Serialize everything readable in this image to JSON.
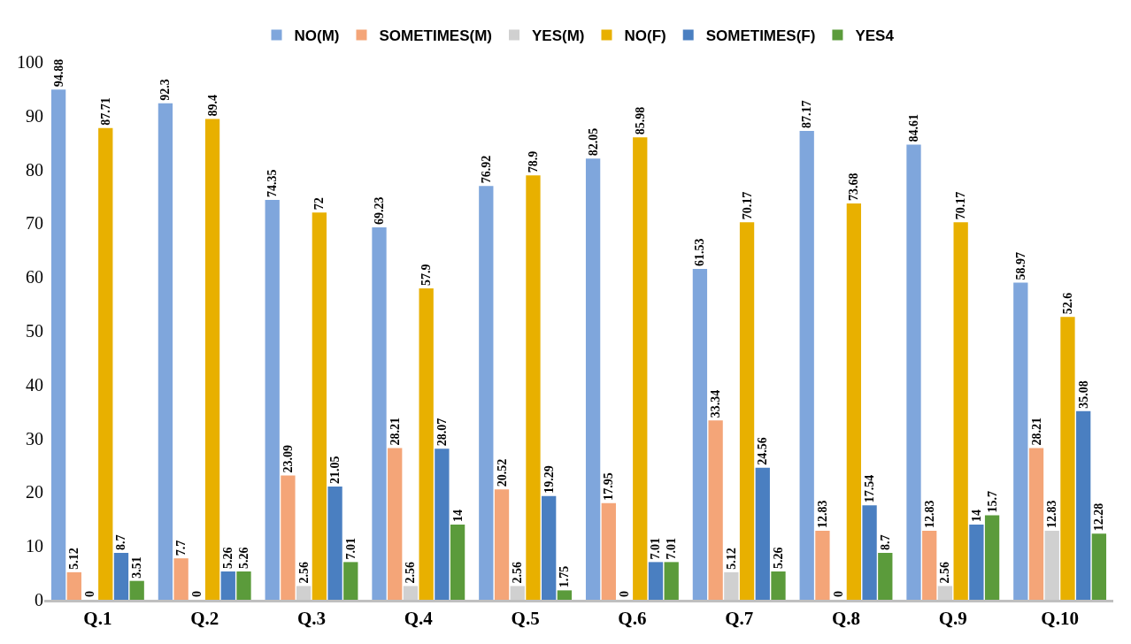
{
  "chart_data": {
    "type": "bar",
    "categories": [
      "Q.1",
      "Q.2",
      "Q.3",
      "Q.4",
      "Q.5",
      "Q.6",
      "Q.7",
      "Q.8",
      "Q.9",
      "Q.10"
    ],
    "series": [
      {
        "name": "NO(M)",
        "color": "#7fa6dc",
        "values": [
          94.88,
          92.3,
          74.35,
          69.23,
          76.92,
          82.05,
          61.53,
          87.17,
          84.61,
          58.97
        ]
      },
      {
        "name": "SOMETIMES(M)",
        "color": "#f4a578",
        "values": [
          5.12,
          7.7,
          23.09,
          28.21,
          20.52,
          17.95,
          33.34,
          12.83,
          12.83,
          28.21
        ]
      },
      {
        "name": "YES(M)",
        "color": "#d0d0d0",
        "values": [
          0,
          0,
          2.56,
          2.56,
          2.56,
          0,
          5.12,
          0,
          2.56,
          12.83
        ]
      },
      {
        "name": "NO(F)",
        "color": "#e8b000",
        "values": [
          87.71,
          89.4,
          72,
          57.9,
          78.9,
          85.98,
          70.17,
          73.68,
          70.17,
          52.6
        ]
      },
      {
        "name": "SOMETIMES(F)",
        "color": "#4a7fc1",
        "values": [
          8.7,
          5.26,
          21.05,
          28.07,
          19.29,
          7.01,
          24.56,
          17.54,
          14,
          35.08
        ]
      },
      {
        "name": "YES4",
        "color": "#5b9b3b",
        "values": [
          3.51,
          5.26,
          7.01,
          14,
          1.75,
          7.01,
          5.26,
          8.7,
          15.7,
          12.28
        ]
      }
    ],
    "ylim": [
      0,
      100
    ],
    "yticks": [
      0,
      10,
      20,
      30,
      40,
      50,
      60,
      70,
      80,
      90,
      100
    ],
    "grid": false,
    "legend": "top",
    "data_labels": true
  }
}
